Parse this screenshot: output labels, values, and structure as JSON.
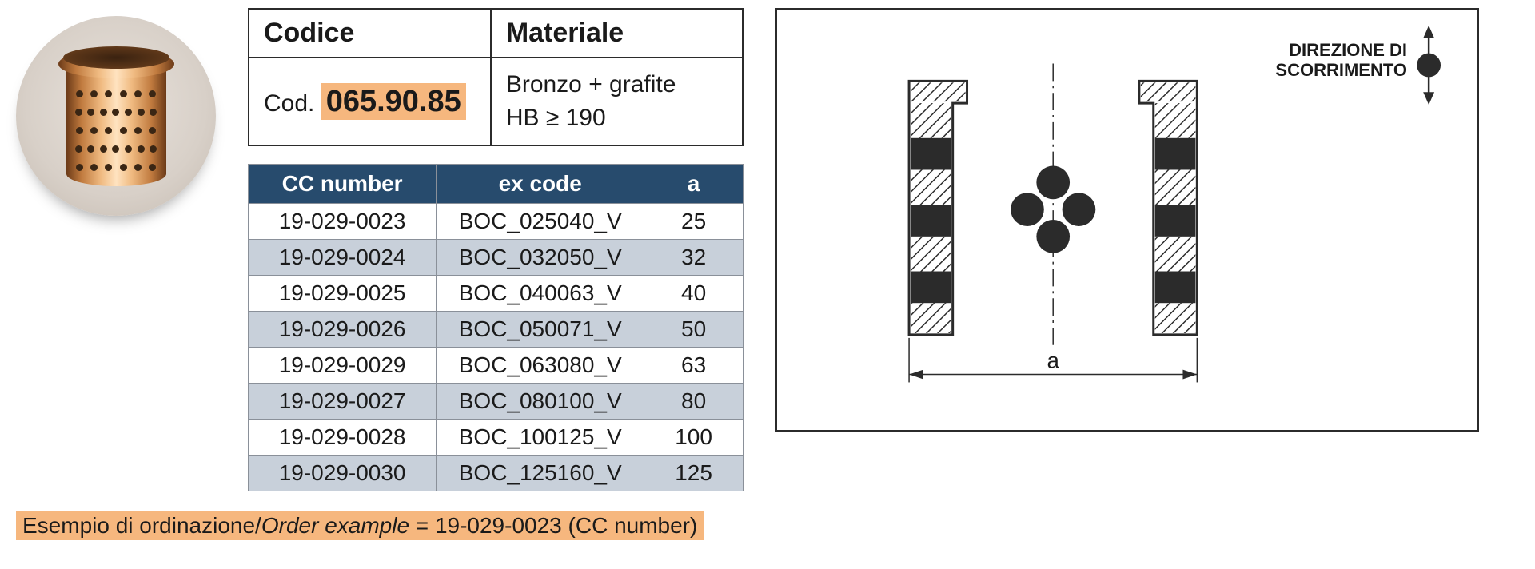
{
  "info": {
    "codice_header": "Codice",
    "materiale_header": "Materiale",
    "cod_label": "Cod.",
    "cod_value": "065.90.85",
    "material_line1": "Bronzo + grafite",
    "material_line2": "HB ≥ 190"
  },
  "data_table": {
    "header_bg": "#274b6d",
    "header_fg": "#ffffff",
    "row_odd_bg": "#ffffff",
    "row_even_bg": "#c8d0da",
    "border_color": "#8a9099",
    "columns": [
      "CC number",
      "ex code",
      "a"
    ],
    "rows": [
      [
        "19-029-0023",
        "BOC_025040_V",
        "25"
      ],
      [
        "19-029-0024",
        "BOC_032050_V",
        "32"
      ],
      [
        "19-029-0025",
        "BOC_040063_V",
        "40"
      ],
      [
        "19-029-0026",
        "BOC_050071_V",
        "50"
      ],
      [
        "19-029-0029",
        "BOC_063080_V",
        "63"
      ],
      [
        "19-029-0027",
        "BOC_080100_V",
        "80"
      ],
      [
        "19-029-0028",
        "BOC_100125_V",
        "100"
      ],
      [
        "19-029-0030",
        "BOC_125160_V",
        "125"
      ]
    ]
  },
  "diagram": {
    "direction_line1": "DIREZIONE DI",
    "direction_line2": "SCORRIMENTO",
    "dimension_label": "a",
    "hatch_color": "#2b2b2b",
    "stroke_color": "#2b2b2b"
  },
  "order_example": {
    "prefix": "Esempio di ordinazione/",
    "italic": "Order example",
    "suffix": " = 19-029-0023 (CC number)"
  },
  "colors": {
    "highlight": "#f6b77e",
    "text": "#1a1a1a",
    "border": "#2b2b2b"
  }
}
